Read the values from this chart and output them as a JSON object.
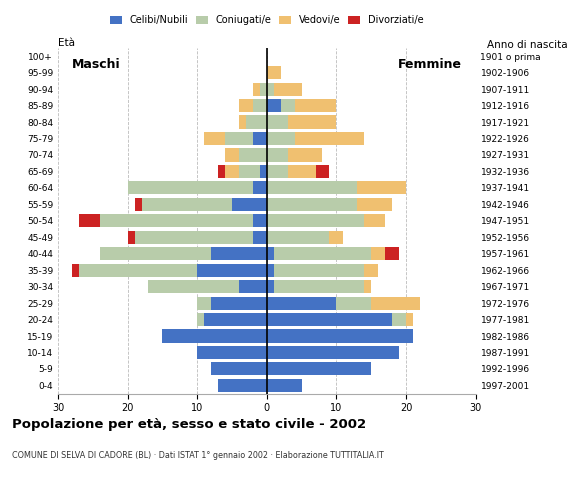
{
  "age_groups": [
    "0-4",
    "5-9",
    "10-14",
    "15-19",
    "20-24",
    "25-29",
    "30-34",
    "35-39",
    "40-44",
    "45-49",
    "50-54",
    "55-59",
    "60-64",
    "65-69",
    "70-74",
    "75-79",
    "80-84",
    "85-89",
    "90-94",
    "95-99",
    "100+"
  ],
  "birth_years": [
    "1997-2001",
    "1992-1996",
    "1987-1991",
    "1982-1986",
    "1977-1981",
    "1972-1976",
    "1967-1971",
    "1962-1966",
    "1957-1961",
    "1952-1956",
    "1947-1951",
    "1942-1946",
    "1937-1941",
    "1932-1936",
    "1927-1931",
    "1922-1926",
    "1917-1921",
    "1912-1916",
    "1907-1911",
    "1902-1906",
    "1901 o prima"
  ],
  "males": {
    "celibi": [
      7,
      8,
      10,
      15,
      9,
      8,
      4,
      10,
      8,
      2,
      2,
      5,
      2,
      1,
      0,
      2,
      0,
      0,
      0,
      0,
      0
    ],
    "coniugati": [
      0,
      0,
      0,
      0,
      1,
      2,
      13,
      17,
      16,
      17,
      22,
      13,
      18,
      3,
      4,
      4,
      3,
      2,
      1,
      0,
      0
    ],
    "vedovi": [
      0,
      0,
      0,
      0,
      0,
      0,
      0,
      0,
      0,
      0,
      0,
      0,
      0,
      2,
      2,
      3,
      1,
      2,
      1,
      0,
      0
    ],
    "divorziati": [
      0,
      0,
      0,
      0,
      0,
      0,
      0,
      1,
      0,
      1,
      3,
      1,
      0,
      1,
      0,
      0,
      0,
      0,
      0,
      0,
      0
    ]
  },
  "females": {
    "nubili": [
      5,
      15,
      19,
      21,
      18,
      10,
      1,
      1,
      1,
      0,
      0,
      0,
      0,
      0,
      0,
      0,
      0,
      2,
      0,
      0,
      0
    ],
    "coniugate": [
      0,
      0,
      0,
      0,
      2,
      5,
      13,
      13,
      14,
      9,
      14,
      13,
      13,
      3,
      3,
      4,
      3,
      2,
      1,
      0,
      0
    ],
    "vedove": [
      0,
      0,
      0,
      0,
      1,
      7,
      1,
      2,
      2,
      2,
      3,
      5,
      7,
      4,
      5,
      10,
      7,
      6,
      4,
      2,
      0
    ],
    "divorziate": [
      0,
      0,
      0,
      0,
      0,
      0,
      0,
      0,
      2,
      0,
      0,
      0,
      0,
      2,
      0,
      0,
      0,
      0,
      0,
      0,
      0
    ]
  },
  "color_celibi": "#4472c4",
  "color_coniugati": "#b8ccaa",
  "color_vedovi": "#f0c070",
  "color_divorziati": "#cc2222",
  "xlim": 30,
  "title": "Popolazione per età, sesso e stato civile - 2002",
  "subtitle": "COMUNE DI SELVA DI CADORE (BL) · Dati ISTAT 1° gennaio 2002 · Elaborazione TUTTITALIA.IT",
  "label_eta": "Età",
  "label_anno": "Anno di nascita",
  "label_maschi": "Maschi",
  "label_femmine": "Femmine",
  "legend_labels": [
    "Celibi/Nubili",
    "Coniugati/e",
    "Vedovi/e",
    "Divorziati/e"
  ],
  "background_color": "#ffffff"
}
